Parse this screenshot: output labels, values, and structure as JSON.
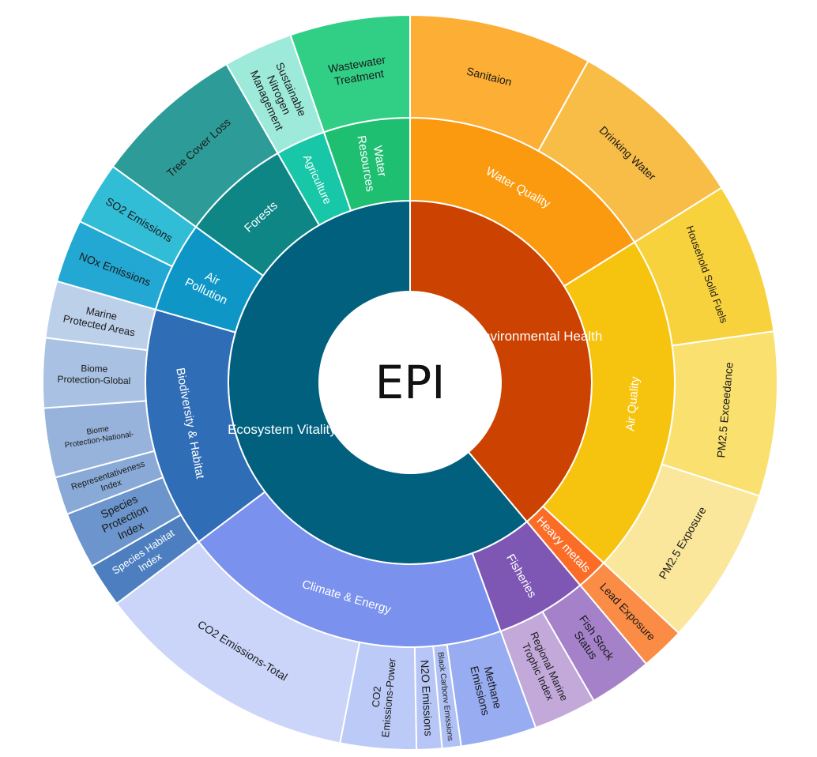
{
  "center_label": "EPI",
  "colors": {
    "center_fill": "#ffffff",
    "label_dark": "#1a1a1a",
    "label_light": "#ffffff"
  },
  "chart_data": {
    "type": "sunburst",
    "root": "EPI",
    "children": [
      {
        "name": "Environmental Health",
        "color": "#cc4200",
        "text": "light",
        "start": 0,
        "end": 140,
        "children": [
          {
            "name": "Water Quality",
            "color": "#fb9a0e",
            "text": "light",
            "start": 0,
            "end": 58,
            "children": [
              {
                "name": "Sanitaion",
                "color": "#fdae35",
                "text": "dark",
                "start": 0,
                "end": 29
              },
              {
                "name": "Drinking Water",
                "color": "#f8bd47",
                "text": "dark",
                "start": 29,
                "end": 58
              }
            ]
          },
          {
            "name": "Air Quality",
            "color": "#f6c40e",
            "text": "light",
            "start": 58,
            "end": 133,
            "children": [
              {
                "name": "Household Solid Fuels",
                "color": "#f8d23c",
                "text": "dark",
                "start": 58,
                "end": 82,
                "sub": [
                  null,
                  null
                ]
              },
              {
                "name": "PM2.5 Exceedance",
                "color": "#fae06e",
                "text": "dark",
                "start": 82,
                "end": 108,
                "sub": [
                  "PM",
                  "2.5"
                ]
              },
              {
                "name": "PM2.5 Exposure",
                "color": "#fbe79b",
                "text": "dark",
                "start": 108,
                "end": 133,
                "sub": [
                  "PM",
                  "2.5"
                ]
              }
            ]
          },
          {
            "name": "Heavy metals",
            "color": "#fb6d27",
            "text": "light",
            "start": 133,
            "end": 140,
            "children": [
              {
                "name": "Lead Exposure",
                "color": "#fb8c45",
                "text": "dark",
                "start": 133,
                "end": 140
              }
            ]
          }
        ]
      },
      {
        "name": "Ecosystem Vitality",
        "color": "#02607f",
        "text": "light",
        "start": 140,
        "end": 360,
        "children": [
          {
            "name": "Fisheries",
            "color": "#7e57b5",
            "text": "light",
            "start": 140,
            "end": 160,
            "children": [
              {
                "name": "Fish Stock Status",
                "color": "#a481c8",
                "text": "dark",
                "start": 140,
                "end": 150
              },
              {
                "name": "Regional Marine Trophic Index",
                "color": "#c3a9da",
                "text": "dark",
                "start": 150,
                "end": 160
              }
            ]
          },
          {
            "name": "Climate & Energy",
            "color": "#7a91ee",
            "text": "light",
            "start": 160,
            "end": 233,
            "children": [
              {
                "name": "Methane Emissions",
                "color": "#98acf2",
                "text": "dark",
                "start": 160,
                "end": 172
              },
              {
                "name": "Black Carbonv Emissions",
                "color": "#b0c1f6",
                "text": "dark",
                "start": 172,
                "end": 175
              },
              {
                "name": "N2O Emissions",
                "color": "#b7c6f6",
                "text": "dark",
                "start": 175,
                "end": 179
              },
              {
                "name": "CO2 Emissions-Power",
                "color": "#bccaf7",
                "text": "dark",
                "start": 179,
                "end": 191
              },
              {
                "name": "CO2 Emissions-Total",
                "color": "#cad5f9",
                "text": "dark",
                "start": 191,
                "end": 233
              }
            ]
          },
          {
            "name": "Biodiversity & Habitat",
            "color": "#2f6db7",
            "text": "light",
            "start": 233,
            "end": 286,
            "children": [
              {
                "name": "Species Habitat Index",
                "color": "#4d7fc0",
                "text": "light",
                "start": 233,
                "end": 240
              },
              {
                "name": "Species Protection Index",
                "color": "#6b95cc",
                "text": "dark",
                "start": 240,
                "end": 249
              },
              {
                "name": "Representativeness Index",
                "color": "#89aad6",
                "text": "dark",
                "start": 249,
                "end": 255
              },
              {
                "name": "Biome Protection-National-",
                "color": "#97b3db",
                "text": "dark",
                "start": 255,
                "end": 266
              },
              {
                "name": "Biome Protection-Global",
                "color": "#a9c1e2",
                "text": "dark",
                "start": 266,
                "end": 277
              },
              {
                "name": "Marine Protected Areas",
                "color": "#bdd0ea",
                "text": "dark",
                "start": 277,
                "end": 286
              }
            ]
          },
          {
            "name": "Air Pollution",
            "color": "#0e96c7",
            "text": "light",
            "start": 286,
            "end": 306,
            "children": [
              {
                "name": "NOx Emissions",
                "color": "#22a8d3",
                "text": "dark",
                "start": 286,
                "end": 296
              },
              {
                "name": "SO2 Emissions",
                "color": "#32bdd6",
                "text": "dark",
                "start": 296,
                "end": 306
              }
            ]
          },
          {
            "name": "Forests",
            "color": "#0f8686",
            "text": "light",
            "start": 306,
            "end": 330,
            "children": [
              {
                "name": "Tree Cover Loss",
                "color": "#2d9c99",
                "text": "dark",
                "start": 306,
                "end": 330
              }
            ]
          },
          {
            "name": "Agriculture",
            "color": "#17c7a8",
            "text": "light",
            "start": 330,
            "end": 341,
            "children": [
              {
                "name": "Sustainable Nitrogen Management",
                "color": "#9deadb",
                "text": "dark",
                "start": 330,
                "end": 341
              }
            ]
          },
          {
            "name": "Water Resources",
            "color": "#1fbf72",
            "text": "light",
            "start": 341,
            "end": 360,
            "children": [
              {
                "name": "Wastewater Treatment",
                "color": "#31cf86",
                "text": "dark",
                "start": 341,
                "end": 360
              }
            ]
          }
        ]
      }
    ]
  }
}
